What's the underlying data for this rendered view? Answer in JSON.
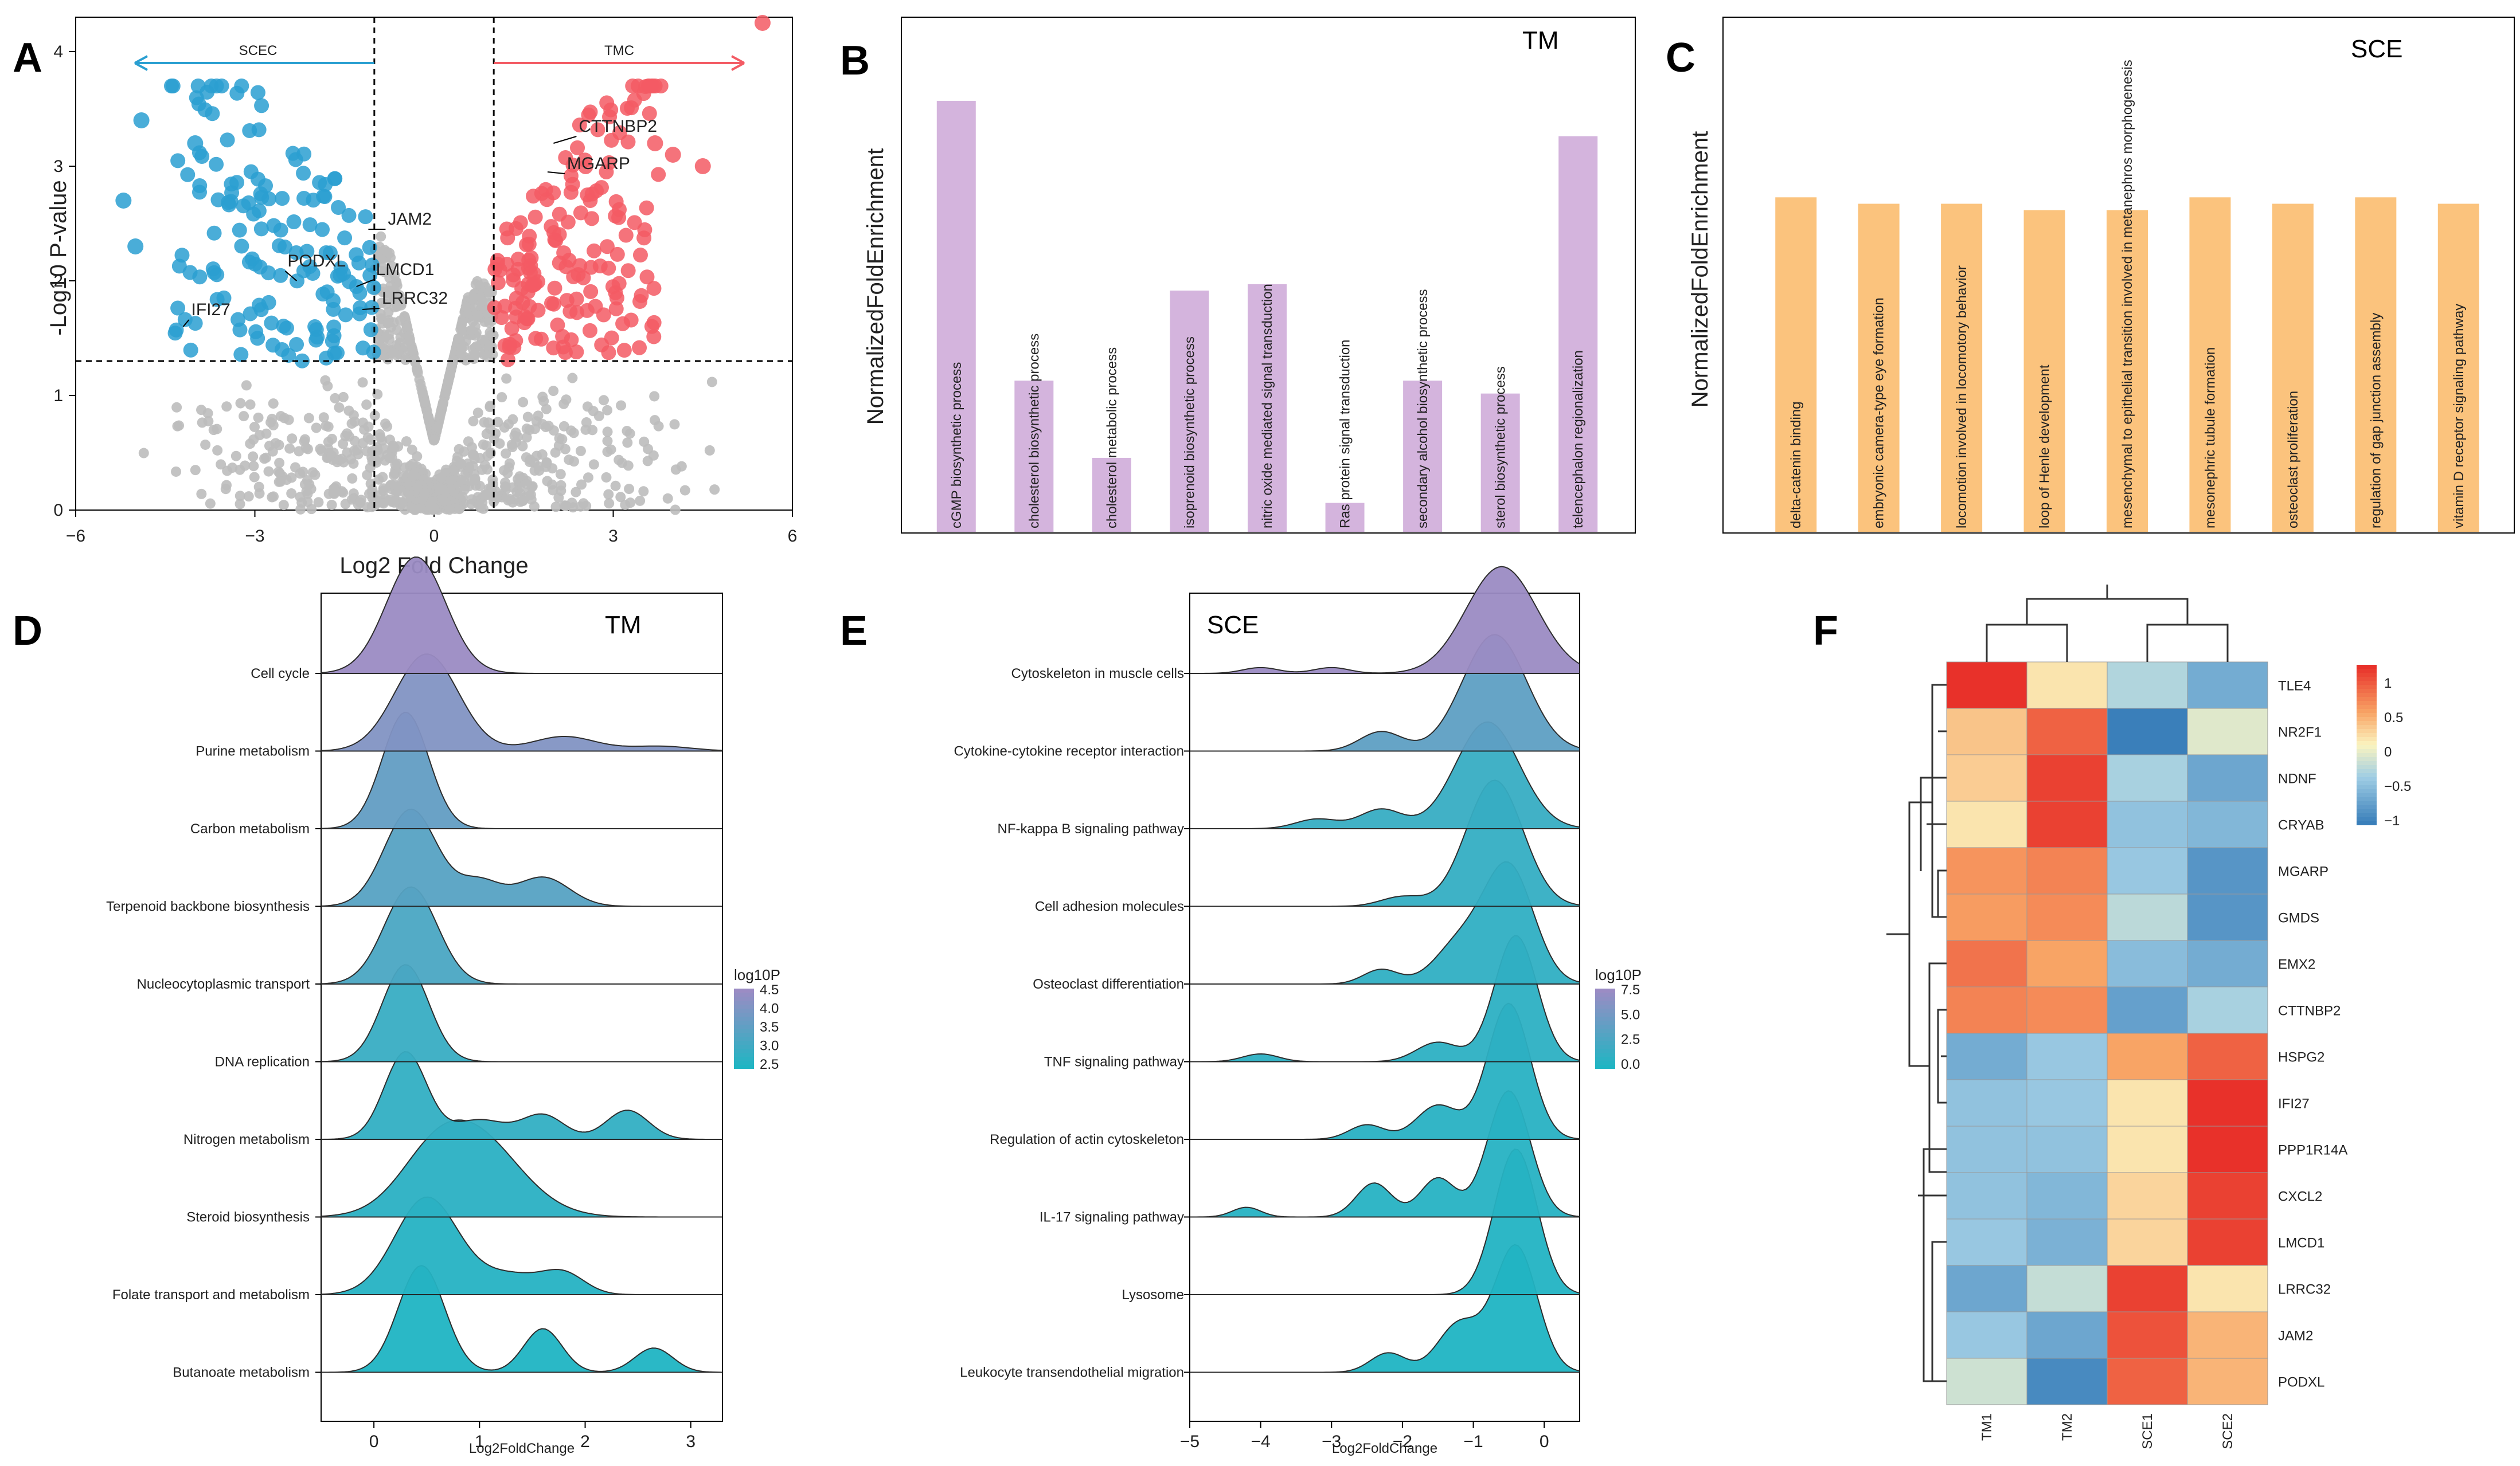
{
  "chart_data": [
    {
      "panel": "A",
      "type": "scatter",
      "title": "",
      "xlabel": "Log2 Fold Change",
      "ylabel": "-Log10 P-value",
      "xlim": [
        -6,
        6
      ],
      "ylim": [
        0,
        4.3
      ],
      "xticks": [
        "−6",
        "−3",
        "0",
        "3",
        "6"
      ],
      "yticks": [
        "0",
        "1",
        "2",
        "3",
        "4"
      ],
      "arrow_labels": {
        "left": "SCEC",
        "right": "TMC"
      },
      "colors": {
        "down": "#2a9fd1",
        "up": "#f35b64",
        "ns": "#bdbdbd"
      },
      "thresholds": {
        "x": [
          -1,
          1
        ],
        "y": 1.3
      },
      "gene_labels": [
        {
          "gene": "CTTNBP2",
          "x": 2.0,
          "y": 3.2
        },
        {
          "gene": "MGARP",
          "x": 1.9,
          "y": 2.95
        },
        {
          "gene": "JAM2",
          "x": -1.1,
          "y": 2.45
        },
        {
          "gene": "PODXL",
          "x": -2.3,
          "y": 2.0
        },
        {
          "gene": "LMCD1",
          "x": -1.3,
          "y": 1.95
        },
        {
          "gene": "LRRC32",
          "x": -1.2,
          "y": 1.75
        },
        {
          "gene": "IFI27",
          "x": -4.2,
          "y": 1.6
        }
      ]
    },
    {
      "panel": "B",
      "type": "bar",
      "title": "TM",
      "xlabel": "",
      "ylabel": "NormalizedFoldEnrichment",
      "ylim": [
        0,
        1.6
      ],
      "color": "#d4b4dd",
      "categories": [
        "cGMP biosynthetic process",
        "cholesterol biosynthetic process",
        "cholesterol metabolic process",
        "isoprenoid biosynthetic process",
        "nitric oxide mediated signal transduction",
        "Ras protein signal transduction",
        "secondary alcohol biosynthetic process",
        "sterol biosynthetic process",
        "telencephalon regionalization"
      ],
      "values": [
        1.34,
        0.47,
        0.23,
        0.75,
        0.77,
        0.09,
        0.47,
        0.43,
        1.23
      ]
    },
    {
      "panel": "C",
      "type": "bar",
      "title": "SCE",
      "xlabel": "",
      "ylabel": "NormalizedFoldEnrichment",
      "ylim": [
        0,
        4
      ],
      "color": "#fbc37d",
      "categories": [
        "delta-catenin binding",
        "embryonic camera-type eye formation",
        "locomotion involved in locomotory behavior",
        "loop of Henle development",
        "mesenchymal to epithelial transition involved in metanephros morphogenesis",
        "mesonephric tubule formation",
        "osteoclast proliferation",
        "regulation of gap junction assembly",
        "vitamin D receptor signaling pathway"
      ],
      "values": [
        2.6,
        2.55,
        2.55,
        2.5,
        2.5,
        2.6,
        2.55,
        2.6,
        2.55
      ]
    },
    {
      "panel": "D",
      "type": "area",
      "title": "TM",
      "xlabel": "Log2FoldChange",
      "ylabel": "",
      "xlim": [
        -0.5,
        3.3
      ],
      "xticks": [
        "0",
        "1",
        "2",
        "3"
      ],
      "legend": {
        "title": "log10P",
        "labels": [
          "4.5",
          "4.0",
          "3.5",
          "3.0",
          "2.5"
        ]
      },
      "categories": [
        "Cell cycle",
        "Purine metabolism",
        "Carbon metabolism",
        "Terpenoid backbone biosynthesis",
        "Nucleocytoplasmic transport",
        "DNA replication",
        "Nitrogen metabolism",
        "Steroid biosynthesis",
        "Folate transport and metabolism",
        "Butanoate metabolism"
      ],
      "series_color_values": [
        4.6,
        4.2,
        3.7,
        3.5,
        3.3,
        3.0,
        2.9,
        2.8,
        2.7,
        2.6
      ]
    },
    {
      "panel": "E",
      "type": "area",
      "title": "SCE",
      "xlabel": "Log2FoldChange",
      "ylabel": "",
      "xlim": [
        -5,
        0.5
      ],
      "xticks": [
        "−5",
        "−4",
        "−3",
        "−2",
        "−1",
        "0"
      ],
      "legend": {
        "title": "log10P",
        "labels": [
          "7.5",
          "5.0",
          "2.5",
          "0.0"
        ]
      },
      "categories": [
        "Cytoskeleton in muscle cells",
        "Cytokine-cytokine receptor interaction",
        "NF-kappa B signaling pathway",
        "Cell adhesion molecules",
        "Osteoclast differentiation",
        "TNF signaling pathway",
        "Regulation of actin cytoskeleton",
        "IL-17 signaling pathway",
        "Lysosome",
        "Leukocyte transendothelial migration"
      ],
      "series_color_values": [
        8.5,
        5.0,
        2.8,
        2.6,
        2.4,
        2.2,
        2.0,
        1.8,
        1.6,
        1.4
      ]
    },
    {
      "panel": "F",
      "type": "heatmap",
      "title": "",
      "columns": [
        "TM1",
        "TM2",
        "SCE1",
        "SCE2"
      ],
      "rows": [
        "TLE4",
        "NR2F1",
        "NDNF",
        "CRYAB",
        "MGARP",
        "GMDS",
        "EMX2",
        "CTTNBP2",
        "HSPG2",
        "IFI27",
        "PPP1R14A",
        "CXCL2",
        "LMCD1",
        "LRRC32",
        "JAM2",
        "PODXL"
      ],
      "values": [
        [
          1.2,
          0.1,
          -0.4,
          -0.8
        ],
        [
          0.3,
          0.9,
          -1.2,
          -0.15
        ],
        [
          0.25,
          1.1,
          -0.45,
          -0.85
        ],
        [
          0.1,
          1.1,
          -0.6,
          -0.7
        ],
        [
          0.6,
          0.7,
          -0.55,
          -1.0
        ],
        [
          0.55,
          0.65,
          -0.35,
          -1.0
        ],
        [
          0.8,
          0.5,
          -0.65,
          -0.8
        ],
        [
          0.7,
          0.65,
          -0.9,
          -0.45
        ],
        [
          -0.8,
          -0.55,
          0.5,
          0.9
        ],
        [
          -0.6,
          -0.55,
          0.1,
          1.2
        ],
        [
          -0.6,
          -0.6,
          0.1,
          1.2
        ],
        [
          -0.6,
          -0.7,
          0.2,
          1.1
        ],
        [
          -0.55,
          -0.75,
          0.2,
          1.1
        ],
        [
          -0.85,
          -0.3,
          1.1,
          0.1
        ],
        [
          -0.55,
          -0.85,
          1.0,
          0.4
        ],
        [
          -0.25,
          -1.1,
          0.9,
          0.4
        ]
      ],
      "legend": {
        "labels": [
          "1",
          "0.5",
          "0",
          "−0.5",
          "−1"
        ]
      }
    }
  ]
}
